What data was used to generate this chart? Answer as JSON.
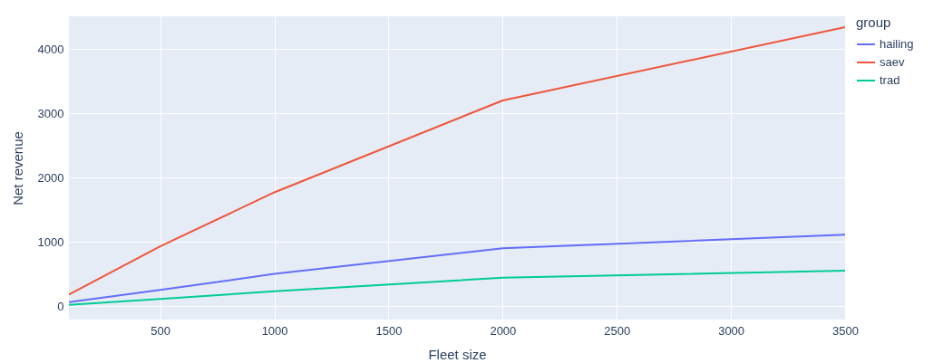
{
  "chart_data": {
    "type": "line",
    "xlabel": "Fleet size",
    "ylabel": "Net revenue",
    "legend_title": "group",
    "legend": "top right",
    "grid": true,
    "xlim": [
      100,
      3500
    ],
    "xticks": [
      500,
      1000,
      1500,
      2000,
      2500,
      3000,
      3500
    ],
    "ylim": [
      -210,
      4510
    ],
    "yticks": [
      0,
      1000,
      2000,
      3000,
      4000
    ],
    "x": [
      100,
      500,
      1000,
      2000,
      3500
    ],
    "series": [
      {
        "name": "hailing",
        "color": "#636efa",
        "values": [
          60,
          250,
          500,
          900,
          1110
        ]
      },
      {
        "name": "saev",
        "color": "#ef553b",
        "values": [
          180,
          930,
          1770,
          3200,
          4340
        ]
      },
      {
        "name": "trad",
        "color": "#00cc96",
        "values": [
          20,
          110,
          230,
          440,
          550
        ]
      }
    ]
  }
}
